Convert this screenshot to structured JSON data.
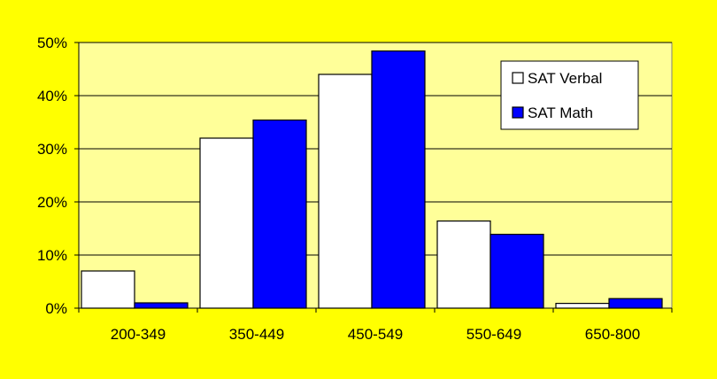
{
  "chart_data": {
    "type": "bar",
    "categories": [
      "200-349",
      "350-449",
      "450-549",
      "550-649",
      "650-800"
    ],
    "series": [
      {
        "name": "SAT Verbal",
        "color": "#ffffff",
        "values": [
          7,
          32,
          44,
          16.4,
          0.9
        ]
      },
      {
        "name": "SAT Math",
        "color": "#0000ff",
        "values": [
          1,
          35.4,
          48.4,
          13.9,
          1.8
        ]
      }
    ],
    "yticks": [
      "0%",
      "10%",
      "20%",
      "30%",
      "40%",
      "50%"
    ],
    "ylim": [
      0,
      50
    ],
    "grid": true,
    "legend_position": "top-right",
    "colors": {
      "background": "#ffff00",
      "plot_area": "#ffff99",
      "grid": "#000000"
    }
  }
}
